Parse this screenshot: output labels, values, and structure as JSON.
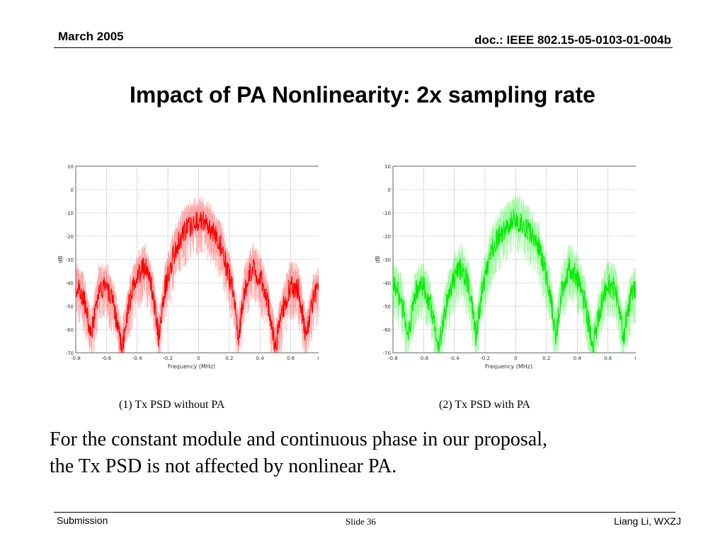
{
  "header": {
    "date": "March 2005",
    "doc_id": "doc.: IEEE 802.15-05-0103-01-004b"
  },
  "title": "Impact of PA Nonlinearity: 2x sampling rate",
  "captions": {
    "left": "(1) Tx PSD without PA",
    "right": "(2) Tx PSD with  PA"
  },
  "body_text": [
    "For the constant module and continuous phase in our proposal,",
    "the Tx PSD is not affected by nonlinear PA."
  ],
  "footer": {
    "left": "Submission",
    "center": "Slide 36",
    "right": "Liang Li, WXZJ"
  },
  "colors": {
    "left_series": "#ff0000",
    "right_series": "#00ee00",
    "grid": "#888888"
  },
  "chart_data": [
    {
      "type": "line",
      "xlabel": "Frequency (MHz)",
      "ylabel": "dB",
      "xlim": [
        -0.8,
        0.8
      ],
      "ylim": [
        -70,
        10
      ],
      "xticks": [
        "-0.8",
        "-0.6",
        "-0.4",
        "-0.2",
        "0",
        "0.2",
        "0.4",
        "0.6",
        "0.8"
      ],
      "yticks": [
        "10",
        "0",
        "-10",
        "-20",
        "-30",
        "-40",
        "-50",
        "-60",
        "-70"
      ],
      "grid": true,
      "series": [
        {
          "color": "#ff0000",
          "envelope": [
            [
              -0.8,
              -38
            ],
            [
              -0.75,
              -43
            ],
            [
              -0.7,
              -60
            ],
            [
              -0.65,
              -40
            ],
            [
              -0.6,
              -38
            ],
            [
              -0.55,
              -48
            ],
            [
              -0.5,
              -65
            ],
            [
              -0.45,
              -45
            ],
            [
              -0.4,
              -35
            ],
            [
              -0.35,
              -30
            ],
            [
              -0.3,
              -40
            ],
            [
              -0.26,
              -60
            ],
            [
              -0.22,
              -40
            ],
            [
              -0.15,
              -22
            ],
            [
              -0.1,
              -16
            ],
            [
              -0.05,
              -12
            ],
            [
              0,
              -10
            ],
            [
              0.05,
              -12
            ],
            [
              0.1,
              -16
            ],
            [
              0.15,
              -22
            ],
            [
              0.22,
              -40
            ],
            [
              0.26,
              -60
            ],
            [
              0.3,
              -40
            ],
            [
              0.35,
              -30
            ],
            [
              0.4,
              -35
            ],
            [
              0.45,
              -45
            ],
            [
              0.5,
              -65
            ],
            [
              0.55,
              -48
            ],
            [
              0.6,
              -38
            ],
            [
              0.65,
              -40
            ],
            [
              0.7,
              -60
            ],
            [
              0.75,
              -43
            ],
            [
              0.8,
              -38
            ]
          ]
        }
      ]
    },
    {
      "type": "line",
      "xlabel": "Frequency (MHz)",
      "ylabel": "dB",
      "xlim": [
        -0.8,
        0.8
      ],
      "ylim": [
        -70,
        10
      ],
      "xticks": [
        "-0.8",
        "-0.6",
        "-0.4",
        "-0.2",
        "0",
        "0.2",
        "0.4",
        "0.6",
        "0.8"
      ],
      "yticks": [
        "10",
        "0",
        "-10",
        "-20",
        "-30",
        "-40",
        "-50",
        "-60",
        "-70"
      ],
      "grid": true,
      "series": [
        {
          "color": "#00ee00",
          "envelope": [
            [
              -0.8,
              -38
            ],
            [
              -0.75,
              -43
            ],
            [
              -0.7,
              -60
            ],
            [
              -0.65,
              -40
            ],
            [
              -0.6,
              -38
            ],
            [
              -0.55,
              -48
            ],
            [
              -0.5,
              -65
            ],
            [
              -0.45,
              -45
            ],
            [
              -0.4,
              -35
            ],
            [
              -0.35,
              -30
            ],
            [
              -0.3,
              -40
            ],
            [
              -0.26,
              -60
            ],
            [
              -0.22,
              -40
            ],
            [
              -0.15,
              -22
            ],
            [
              -0.1,
              -16
            ],
            [
              -0.05,
              -12
            ],
            [
              0,
              -10
            ],
            [
              0.05,
              -12
            ],
            [
              0.1,
              -16
            ],
            [
              0.15,
              -22
            ],
            [
              0.22,
              -40
            ],
            [
              0.26,
              -60
            ],
            [
              0.3,
              -40
            ],
            [
              0.35,
              -30
            ],
            [
              0.4,
              -35
            ],
            [
              0.45,
              -45
            ],
            [
              0.5,
              -65
            ],
            [
              0.55,
              -48
            ],
            [
              0.6,
              -38
            ],
            [
              0.65,
              -40
            ],
            [
              0.7,
              -60
            ],
            [
              0.75,
              -43
            ],
            [
              0.8,
              -38
            ]
          ]
        }
      ]
    }
  ]
}
